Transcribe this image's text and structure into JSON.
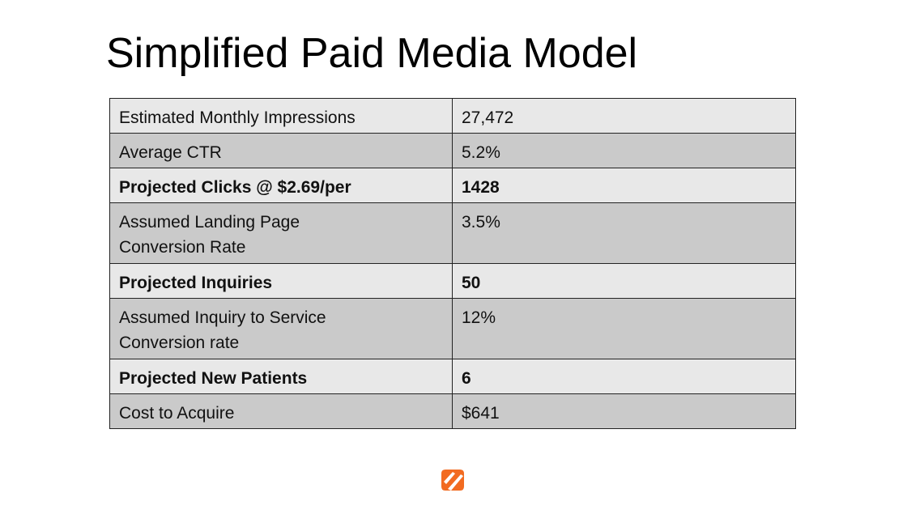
{
  "header": {
    "title": "Simplified Paid Media Model"
  },
  "table": {
    "rows": [
      [
        "Estimated Monthly Impressions",
        "27,472"
      ],
      [
        "Average  CTR",
        "5.2%"
      ],
      [
        "Projected Clicks @ $2.69/per",
        "1428"
      ],
      [
        "Assumed Landing Page\nConversion Rate",
        "3.5%"
      ],
      [
        "Projected Inquiries",
        "50"
      ],
      [
        "Assumed Inquiry to Service\nConversion rate",
        "12%"
      ],
      [
        "Projected New Patients",
        "6"
      ],
      [
        "Cost to Acquire",
        "$641"
      ]
    ]
  }
}
